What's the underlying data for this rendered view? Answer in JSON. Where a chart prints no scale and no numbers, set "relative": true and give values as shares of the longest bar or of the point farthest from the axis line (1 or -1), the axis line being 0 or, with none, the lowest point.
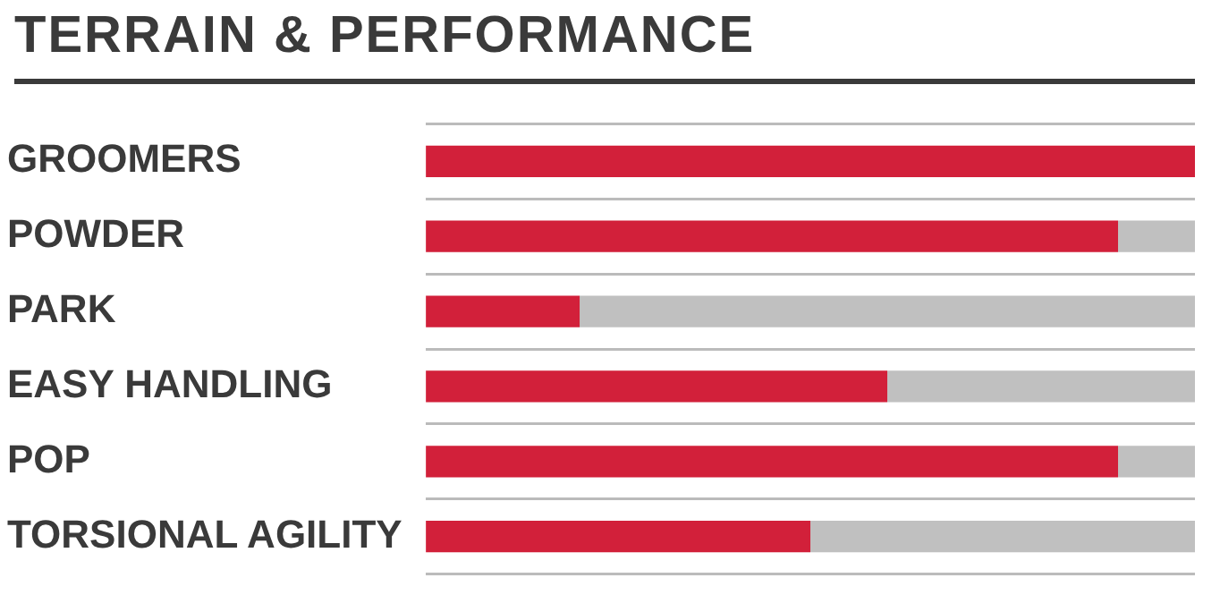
{
  "chart_data": {
    "type": "bar",
    "orientation": "horizontal",
    "stacked": true,
    "relative": true,
    "title": "TERRAIN & PERFORMANCE",
    "grid": "y",
    "legend": false,
    "categories": [
      "GROOMERS",
      "POWDER",
      "PARK",
      "EASY HANDLING",
      "POP",
      "TORSIONAL AGILITY"
    ],
    "series": [
      {
        "color": "#d2203a",
        "values": [
          1,
          0.9,
          0.2,
          0.6,
          0.9,
          0.5
        ]
      },
      {
        "color": "#c0c0c0",
        "values": [
          0,
          0.1,
          0.8,
          0.4,
          0.1,
          0.5
        ]
      }
    ]
  }
}
